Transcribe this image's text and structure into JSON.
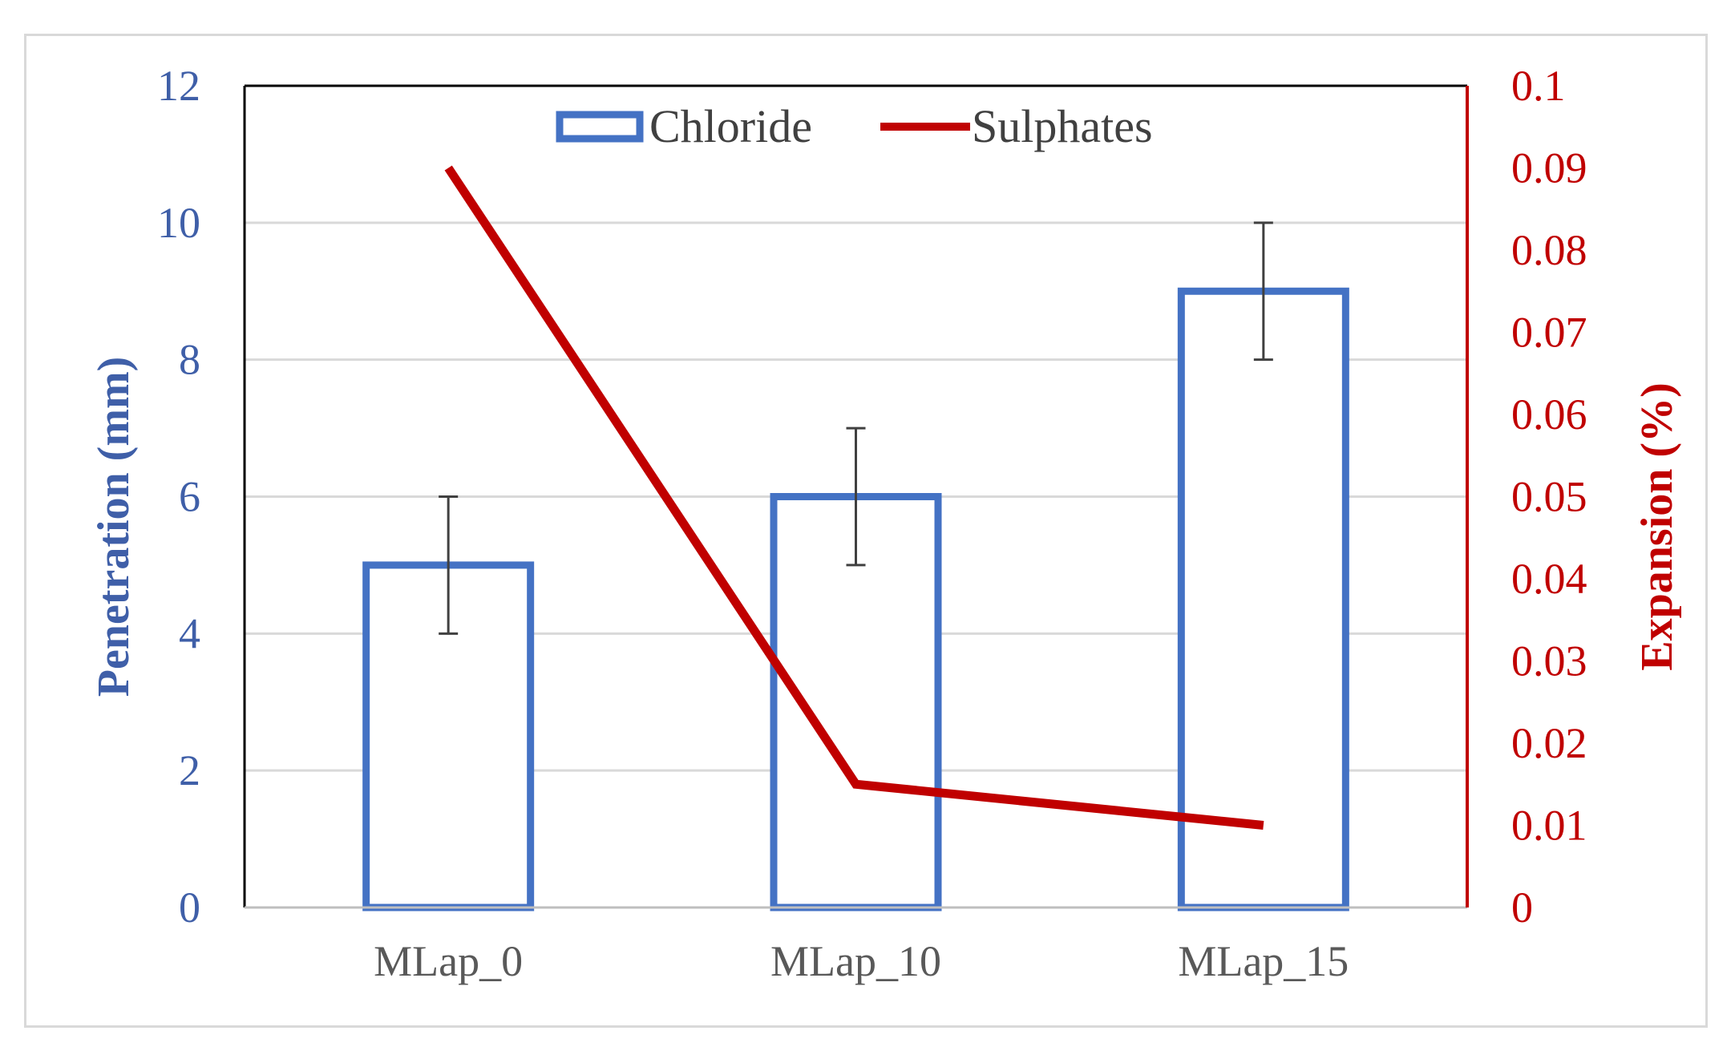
{
  "chart_data": {
    "type": "bar",
    "categories": [
      "MLap_0",
      "MLap_10",
      "MLap_15"
    ],
    "series": [
      {
        "name": "Chloride",
        "kind": "bar",
        "axis": "left",
        "values": [
          5,
          6,
          9
        ],
        "error": [
          1,
          1,
          1
        ],
        "color": "#4472c4"
      },
      {
        "name": "Sulphates",
        "kind": "line",
        "axis": "right",
        "values": [
          0.09,
          0.015,
          0.01
        ],
        "color": "#c00000"
      }
    ],
    "ylabel": "Penetration (mm)",
    "y2label": "Expansion (%)",
    "ylim": [
      0,
      12
    ],
    "y2lim": [
      0,
      0.1
    ],
    "yticks": [
      "0",
      "2",
      "4",
      "6",
      "8",
      "10",
      "12"
    ],
    "y2ticks": [
      "0",
      "0.01",
      "0.02",
      "0.03",
      "0.04",
      "0.05",
      "0.06",
      "0.07",
      "0.08",
      "0.09",
      "0.1"
    ],
    "grid": true,
    "legend": "top-center",
    "colors": {
      "left_axis": "#3f5fa8",
      "right_axis": "#c00000",
      "gridline": "#d9d9d9",
      "errorbar": "#404040"
    }
  }
}
